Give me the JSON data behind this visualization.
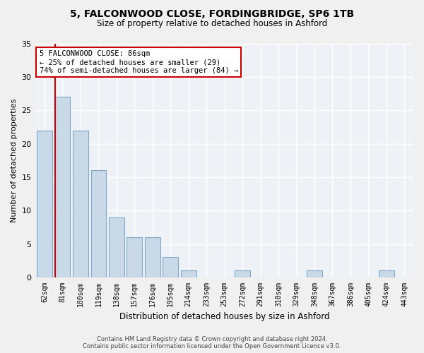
{
  "title1": "5, FALCONWOOD CLOSE, FORDINGBRIDGE, SP6 1TB",
  "title2": "Size of property relative to detached houses in Ashford",
  "xlabel": "Distribution of detached houses by size in Ashford",
  "ylabel": "Number of detached properties",
  "categories": [
    "62sqm",
    "81sqm",
    "100sqm",
    "119sqm",
    "138sqm",
    "157sqm",
    "176sqm",
    "195sqm",
    "214sqm",
    "233sqm",
    "253sqm",
    "272sqm",
    "291sqm",
    "310sqm",
    "329sqm",
    "348sqm",
    "367sqm",
    "386sqm",
    "405sqm",
    "424sqm",
    "443sqm"
  ],
  "values": [
    22,
    27,
    22,
    16,
    9,
    6,
    6,
    3,
    1,
    0,
    0,
    1,
    0,
    0,
    0,
    1,
    0,
    0,
    0,
    1,
    0
  ],
  "bar_color": "#c9d9e8",
  "bar_edge_color": "#7fa8c9",
  "annotation_line1": "5 FALCONWOOD CLOSE: 86sqm",
  "annotation_line2": "← 25% of detached houses are smaller (29)",
  "annotation_line3": "74% of semi-detached houses are larger (84) →",
  "annotation_box_color": "#ffffff",
  "annotation_box_edge_color": "#cc0000",
  "red_line_color": "#cc0000",
  "ylim": [
    0,
    35
  ],
  "yticks": [
    0,
    5,
    10,
    15,
    20,
    25,
    30,
    35
  ],
  "background_color": "#eef2f7",
  "grid_color": "#ffffff",
  "footer1": "Contains HM Land Registry data © Crown copyright and database right 2024.",
  "footer2": "Contains public sector information licensed under the Open Government Licence v3.0."
}
